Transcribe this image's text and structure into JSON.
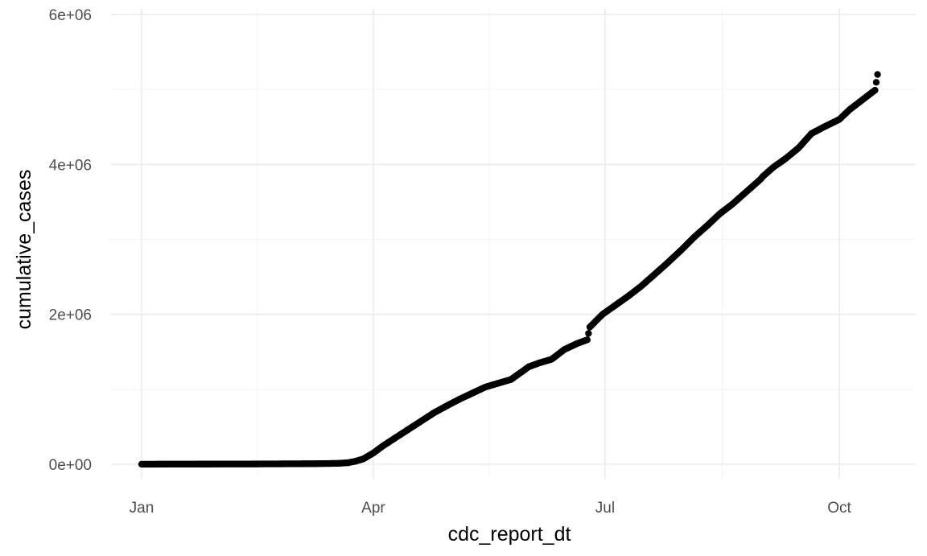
{
  "chart_data": {
    "type": "scatter",
    "xlabel": "cdc_report_dt",
    "ylabel": "cumulative_cases",
    "x_axis_type": "date",
    "xlim": [
      "2019-12-20",
      "2020-10-31"
    ],
    "ylim": [
      -300000,
      6000000
    ],
    "x_ticks": [
      {
        "value": "2020-01-01",
        "label": "Jan"
      },
      {
        "value": "2020-04-01",
        "label": "Apr"
      },
      {
        "value": "2020-07-01",
        "label": "Jul"
      },
      {
        "value": "2020-10-01",
        "label": "Oct"
      }
    ],
    "y_ticks": [
      {
        "value": 0,
        "label": "0e+00"
      },
      {
        "value": 2000000,
        "label": "2e+06"
      },
      {
        "value": 4000000,
        "label": "4e+06"
      },
      {
        "value": 6000000,
        "label": "6e+06"
      }
    ],
    "grid": true,
    "legend": "none",
    "point_color": "#000000",
    "series": [
      {
        "x": [
          "2020-01-01",
          "2020-01-03",
          "2020-01-05",
          "2020-01-08",
          "2020-01-15",
          "2020-01-22",
          "2020-02-01",
          "2020-02-15",
          "2020-03-01",
          "2020-03-10",
          "2020-03-18",
          "2020-03-22",
          "2020-03-25",
          "2020-03-28",
          "2020-04-01",
          "2020-04-05",
          "2020-04-10",
          "2020-04-15",
          "2020-04-20",
          "2020-04-25",
          "2020-05-01",
          "2020-05-05",
          "2020-05-10",
          "2020-05-15",
          "2020-05-20",
          "2020-05-25",
          "2020-05-30",
          "2020-06-01",
          "2020-06-05",
          "2020-06-10",
          "2020-06-15",
          "2020-06-20",
          "2020-06-24",
          "2020-06-25",
          "2020-06-30",
          "2020-07-05",
          "2020-07-10",
          "2020-07-15",
          "2020-07-20",
          "2020-07-25",
          "2020-07-31",
          "2020-08-05",
          "2020-08-10",
          "2020-08-15",
          "2020-08-20",
          "2020-08-25",
          "2020-08-31",
          "2020-09-01",
          "2020-09-05",
          "2020-09-10",
          "2020-09-15",
          "2020-09-20",
          "2020-09-25",
          "2020-10-01",
          "2020-10-05",
          "2020-10-10",
          "2020-10-15",
          "2020-10-16"
        ],
        "y": [
          500,
          700,
          900,
          1500,
          2000,
          2500,
          3000,
          4000,
          6000,
          8000,
          12000,
          20000,
          40000,
          70000,
          150000,
          250000,
          360000,
          470000,
          580000,
          690000,
          800000,
          870000,
          950000,
          1030000,
          1080000,
          1130000,
          1250000,
          1300000,
          1350000,
          1400000,
          1530000,
          1610000,
          1660000,
          1830000,
          2000000,
          2120000,
          2240000,
          2370000,
          2520000,
          2670000,
          2860000,
          3030000,
          3180000,
          3340000,
          3470000,
          3620000,
          3800000,
          3840000,
          3960000,
          4080000,
          4220000,
          4410000,
          4500000,
          4600000,
          4730000,
          4860000,
          4990000,
          5200000
        ]
      }
    ]
  }
}
